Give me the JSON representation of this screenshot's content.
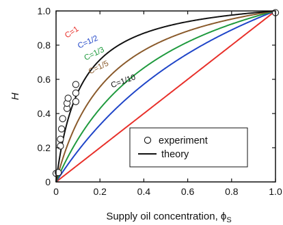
{
  "chart_data": {
    "type": "line",
    "xlabel": "Supply oil concentration, ϕS",
    "xlabel_main": "Supply oil concentration, ϕ",
    "xlabel_sub": "S",
    "ylabel": "H",
    "xlim": [
      0,
      1.0
    ],
    "ylim": [
      0,
      1.0
    ],
    "x_ticks": [
      "0",
      "0.2",
      "0.4",
      "0.6",
      "0.8",
      "1.0"
    ],
    "y_ticks": [
      "0",
      "0.2",
      "0.4",
      "0.6",
      "0.8",
      "1.0"
    ],
    "grid": false,
    "legend_position": "bottom-right",
    "legend": [
      {
        "label": "experiment",
        "marker": "circle-open"
      },
      {
        "label": "theory",
        "marker": "line"
      }
    ],
    "series": [
      {
        "label": "C=1",
        "c": 1,
        "color": "#e8302a",
        "label_rotation": -34,
        "label_at": [
          0.05,
          0.84
        ]
      },
      {
        "label": "C=1/2",
        "c": 0.5,
        "color": "#1f45c8",
        "label_rotation": -24,
        "label_at": [
          0.105,
          0.78
        ]
      },
      {
        "label": "C=1/3",
        "c": 0.3333,
        "color": "#1f9a3e",
        "label_rotation": -26,
        "label_at": [
          0.135,
          0.71
        ]
      },
      {
        "label": "C=1/5",
        "c": 0.2,
        "color": "#8a5a2b",
        "label_rotation": -26,
        "label_at": [
          0.155,
          0.63
        ]
      },
      {
        "label": "C=1/10",
        "c": 0.1,
        "color": "#111111",
        "label_rotation": -20,
        "label_at": [
          0.255,
          0.55
        ]
      }
    ],
    "experiment_points": [
      {
        "x": 0.0,
        "y": 0.05
      },
      {
        "x": 0.01,
        "y": 0.055
      },
      {
        "x": 0.02,
        "y": 0.21
      },
      {
        "x": 0.02,
        "y": 0.25
      },
      {
        "x": 0.025,
        "y": 0.31
      },
      {
        "x": 0.03,
        "y": 0.37
      },
      {
        "x": 0.05,
        "y": 0.43
      },
      {
        "x": 0.05,
        "y": 0.46
      },
      {
        "x": 0.055,
        "y": 0.49
      },
      {
        "x": 0.09,
        "y": 0.47
      },
      {
        "x": 0.09,
        "y": 0.52
      },
      {
        "x": 0.09,
        "y": 0.57
      },
      {
        "x": 1.0,
        "y": 0.99
      }
    ]
  }
}
